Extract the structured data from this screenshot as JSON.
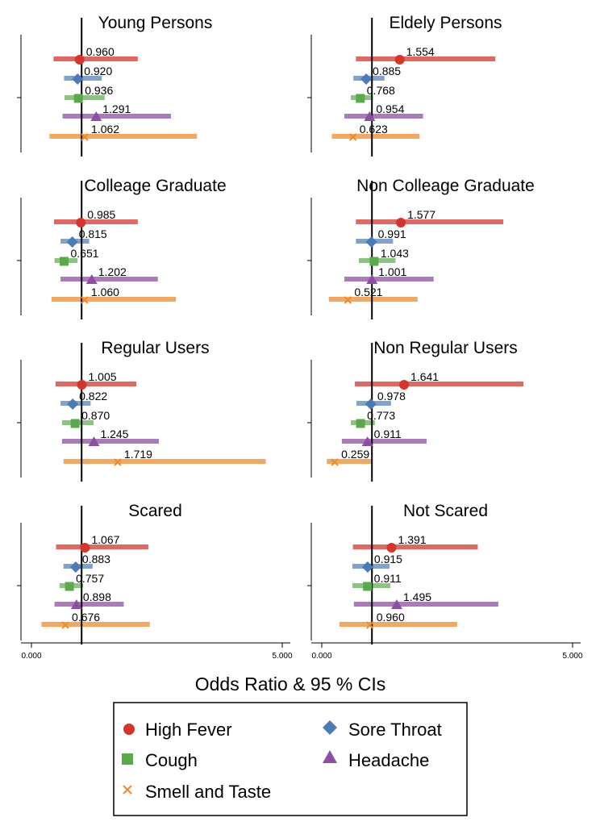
{
  "chart_data": {
    "type": "forest",
    "xlabel": "Odds Ratio & 95 % CIs",
    "xlim": [
      0,
      5
    ],
    "xticks": [
      "0.000",
      "5.000"
    ],
    "reference_line": 1,
    "symptoms": [
      {
        "name": "High Fever",
        "color": "#d7342c",
        "marker": "circle"
      },
      {
        "name": "Sore Throat",
        "color": "#4a7ab8",
        "marker": "diamond"
      },
      {
        "name": "Cough",
        "color": "#5aaa4c",
        "marker": "square"
      },
      {
        "name": "Headache",
        "color": "#8c4fa2",
        "marker": "triangle"
      },
      {
        "name": "Smell and Taste",
        "color": "#f08a28",
        "marker": "x"
      }
    ],
    "panels": [
      {
        "title": "Young Persons",
        "estimates": [
          {
            "or": 0.96,
            "label": "0.960",
            "lo": 0.44,
            "hi": 2.12
          },
          {
            "or": 0.92,
            "label": "0.920",
            "lo": 0.65,
            "hi": 1.4
          },
          {
            "or": 0.936,
            "label": "0.936",
            "lo": 0.66,
            "hi": 1.46
          },
          {
            "or": 1.291,
            "label": "1.291",
            "lo": 0.62,
            "hi": 2.78
          },
          {
            "or": 1.062,
            "label": "1.062",
            "lo": 0.36,
            "hi": 3.3
          }
        ]
      },
      {
        "title": "Eldely Persons",
        "estimates": [
          {
            "or": 1.554,
            "label": "1.554",
            "lo": 0.68,
            "hi": 3.46
          },
          {
            "or": 0.885,
            "label": "0.885",
            "lo": 0.63,
            "hi": 1.25
          },
          {
            "or": 0.768,
            "label": "0.768",
            "lo": 0.58,
            "hi": 1.02
          },
          {
            "or": 0.954,
            "label": "0.954",
            "lo": 0.45,
            "hi": 2.02
          },
          {
            "or": 0.623,
            "label": "0.623",
            "lo": 0.2,
            "hi": 1.95
          }
        ]
      },
      {
        "title": "Colleage Graduate",
        "estimates": [
          {
            "or": 0.985,
            "label": "0.985",
            "lo": 0.45,
            "hi": 2.12
          },
          {
            "or": 0.815,
            "label": "0.815",
            "lo": 0.58,
            "hi": 1.15
          },
          {
            "or": 0.651,
            "label": "0.651",
            "lo": 0.46,
            "hi": 0.92
          },
          {
            "or": 1.202,
            "label": "1.202",
            "lo": 0.58,
            "hi": 2.52
          },
          {
            "or": 1.06,
            "label": "1.060",
            "lo": 0.4,
            "hi": 2.88
          }
        ]
      },
      {
        "title": "Non Colleage Graduate",
        "estimates": [
          {
            "or": 1.577,
            "label": "1.577",
            "lo": 0.68,
            "hi": 3.62
          },
          {
            "or": 0.991,
            "label": "0.991",
            "lo": 0.68,
            "hi": 1.42
          },
          {
            "or": 1.043,
            "label": "1.043",
            "lo": 0.74,
            "hi": 1.47
          },
          {
            "or": 1.001,
            "label": "1.001",
            "lo": 0.45,
            "hi": 2.23
          },
          {
            "or": 0.521,
            "label": "0.521",
            "lo": 0.14,
            "hi": 1.91
          }
        ]
      },
      {
        "title": "Regular Users",
        "estimates": [
          {
            "or": 1.005,
            "label": "1.005",
            "lo": 0.48,
            "hi": 2.09
          },
          {
            "or": 0.822,
            "label": "0.822",
            "lo": 0.58,
            "hi": 1.18
          },
          {
            "or": 0.87,
            "label": "0.870",
            "lo": 0.61,
            "hi": 1.24
          },
          {
            "or": 1.245,
            "label": "1.245",
            "lo": 0.61,
            "hi": 2.54
          },
          {
            "or": 1.719,
            "label": "1.719",
            "lo": 0.64,
            "hi": 4.67
          }
        ]
      },
      {
        "title": "Non Regular  Users",
        "estimates": [
          {
            "or": 1.641,
            "label": "1.641",
            "lo": 0.66,
            "hi": 4.02
          },
          {
            "or": 0.978,
            "label": "0.978",
            "lo": 0.69,
            "hi": 1.38
          },
          {
            "or": 0.773,
            "label": "0.773",
            "lo": 0.58,
            "hi": 1.06
          },
          {
            "or": 0.911,
            "label": "0.911",
            "lo": 0.4,
            "hi": 2.09
          },
          {
            "or": 0.259,
            "label": "0.259",
            "lo": 0.1,
            "hi": 0.98
          }
        ]
      },
      {
        "title": "Scared",
        "estimates": [
          {
            "or": 1.067,
            "label": "1.067",
            "lo": 0.49,
            "hi": 2.33
          },
          {
            "or": 0.883,
            "label": "0.883",
            "lo": 0.64,
            "hi": 1.22
          },
          {
            "or": 0.757,
            "label": "0.757",
            "lo": 0.56,
            "hi": 1.03
          },
          {
            "or": 0.898,
            "label": "0.898",
            "lo": 0.46,
            "hi": 1.84
          },
          {
            "or": 0.676,
            "label": "0.676",
            "lo": 0.2,
            "hi": 2.36
          }
        ]
      },
      {
        "title": "Not Scared",
        "estimates": [
          {
            "or": 1.391,
            "label": "1.391",
            "lo": 0.62,
            "hi": 3.11
          },
          {
            "or": 0.915,
            "label": "0.915",
            "lo": 0.61,
            "hi": 1.35
          },
          {
            "or": 0.911,
            "label": "0.911",
            "lo": 0.61,
            "hi": 1.37
          },
          {
            "or": 1.495,
            "label": "1.495",
            "lo": 0.64,
            "hi": 3.52
          },
          {
            "or": 0.96,
            "label": "0.960",
            "lo": 0.35,
            "hi": 2.7
          }
        ]
      }
    ]
  }
}
